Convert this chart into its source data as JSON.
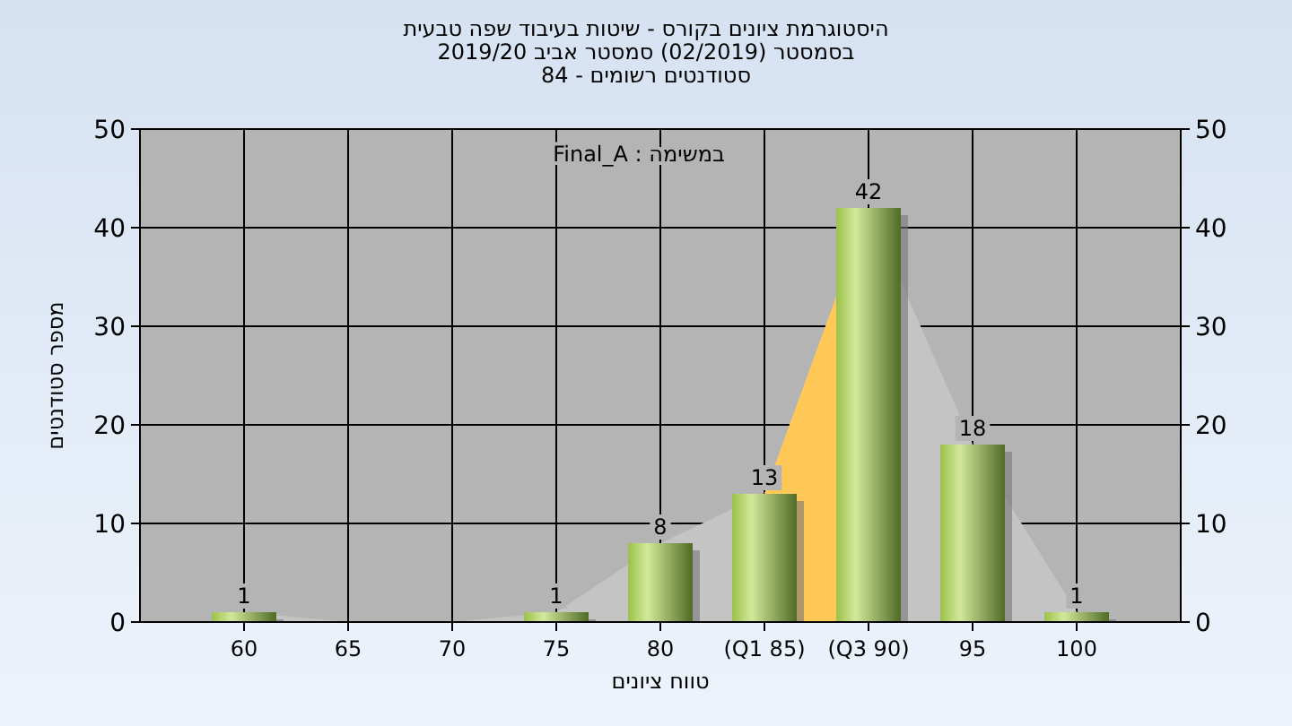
{
  "chart_data": {
    "type": "bar",
    "title": "היסטוגרמת ציונים בקורס - שיטות בעיבוד שפה טבעית",
    "subtitle": "בסמסטר  (02/2019)  סמסטר אביב 2019/20\nסטודנטים רשומים - 84",
    "xlabel": "טווח ציונים",
    "ylabel": "מספר סטודנטים",
    "annotations": [
      "במשימה : Final_A"
    ],
    "categories": [
      "60",
      "65",
      "70",
      "75",
      "80",
      "(Q1 85)",
      "(Q3 90)",
      "95",
      "100"
    ],
    "series": [
      {
        "type": "area",
        "color": "#c4c4c4",
        "values": [
          1,
          0,
          0,
          1,
          8,
          13,
          42,
          18,
          1
        ]
      },
      {
        "type": "area",
        "color": "#ffc857",
        "values": [
          null,
          null,
          null,
          null,
          null,
          13,
          42,
          null,
          null
        ]
      },
      {
        "color": "#9bc24a",
        "values": [
          1,
          0,
          0,
          1,
          8,
          13,
          42,
          18,
          1
        ],
        "value_labels": [
          "1",
          null,
          null,
          "1",
          "8",
          "13",
          "42",
          "18",
          "1"
        ]
      }
    ],
    "ylim": [
      0,
      50
    ],
    "yticks": [
      0,
      10,
      20,
      30,
      40,
      50
    ],
    "y2lim": [
      0,
      50
    ],
    "y2ticks": [
      0,
      10,
      20,
      30,
      40,
      50
    ],
    "grid": true
  }
}
